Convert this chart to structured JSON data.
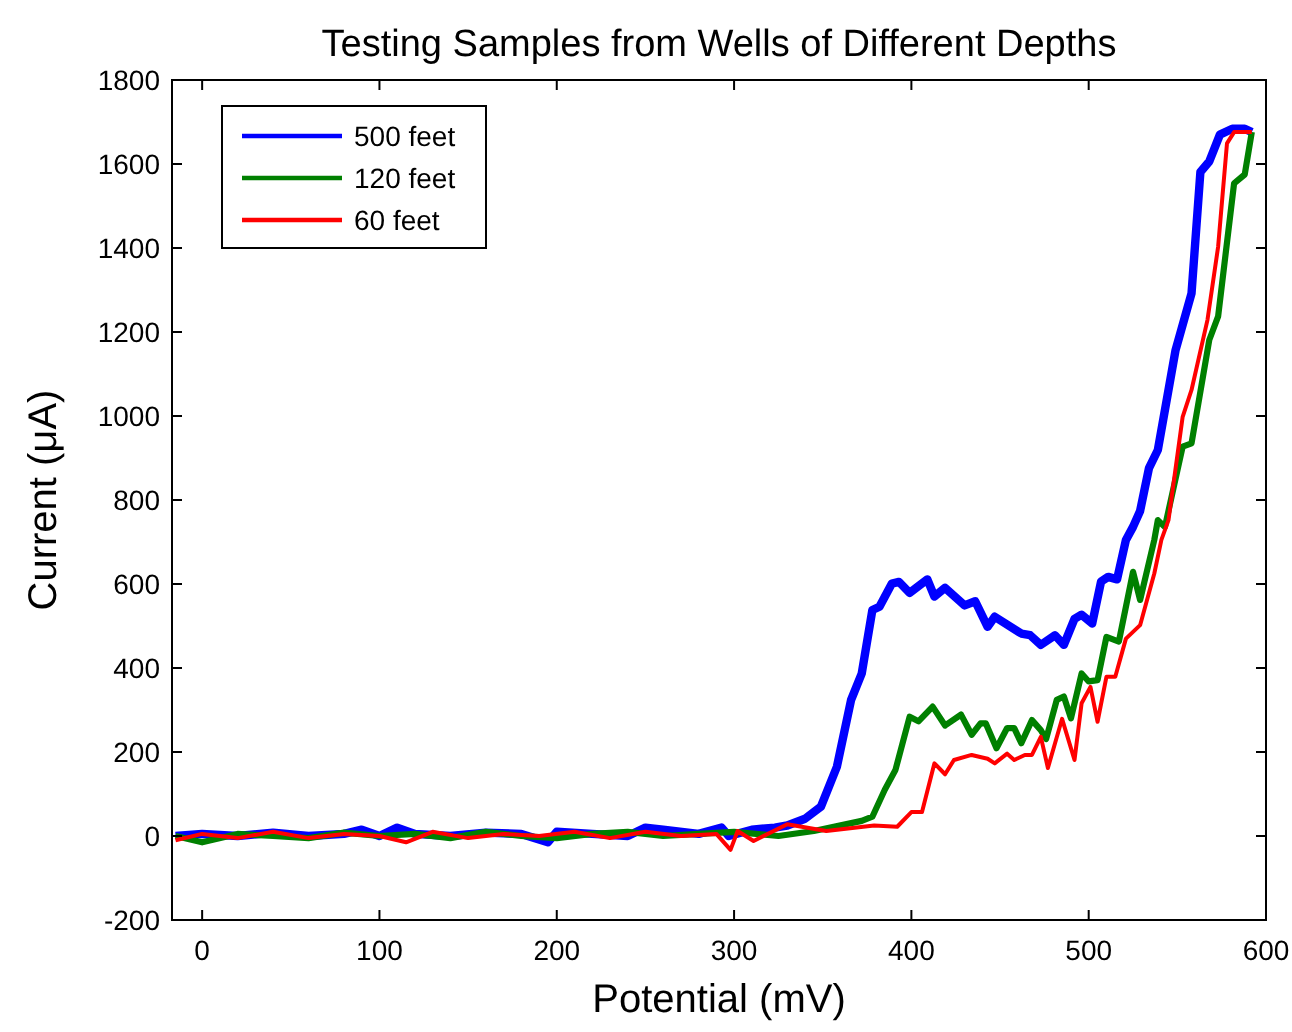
{
  "chart_data": {
    "type": "line",
    "title": "Testing Samples from Wells of Different Depths",
    "xlabel": "Potential (mV)",
    "ylabel": "Current (μA)",
    "xlim": [
      -17,
      600
    ],
    "xticks": [
      0,
      100,
      200,
      300,
      400,
      500,
      600
    ],
    "ylim": [
      -200,
      1800
    ],
    "yticks": [
      -200,
      0,
      200,
      400,
      600,
      800,
      1000,
      1200,
      1400,
      1600,
      1800
    ],
    "grid": false,
    "legend": "top left",
    "line_style": "solid",
    "marker": "none",
    "series": [
      {
        "name": "500 feet",
        "color": "#0000ff",
        "x": [
          -15,
          0,
          20,
          40,
          60,
          80,
          90,
          100,
          110,
          120,
          140,
          160,
          180,
          195,
          200,
          220,
          240,
          250,
          260,
          280,
          293,
          297,
          310,
          323,
          330,
          340,
          349,
          358,
          366,
          372,
          378,
          382,
          389,
          393,
          399,
          409,
          413,
          419,
          430,
          436,
          443,
          447,
          462,
          467,
          473,
          481,
          486,
          492,
          496,
          502,
          507,
          511,
          516,
          521,
          525,
          529,
          534,
          539,
          549,
          558,
          563,
          568,
          574,
          581,
          588,
          592
        ],
        "values": [
          0,
          5,
          0,
          8,
          0,
          5,
          15,
          0,
          20,
          5,
          0,
          8,
          5,
          -15,
          10,
          5,
          0,
          20,
          15,
          5,
          20,
          0,
          15,
          20,
          25,
          41,
          70,
          165,
          324,
          387,
          538,
          546,
          601,
          605,
          579,
          611,
          570,
          591,
          549,
          559,
          498,
          522,
          482,
          478,
          455,
          478,
          455,
          517,
          527,
          506,
          606,
          617,
          611,
          705,
          736,
          774,
          876,
          919,
          1157,
          1292,
          1581,
          1606,
          1670,
          1684,
          1684,
          1676
        ]
      },
      {
        "name": "120 feet",
        "color": "#008000",
        "x": [
          -15,
          0,
          20,
          40,
          60,
          80,
          100,
          120,
          140,
          160,
          180,
          200,
          220,
          240,
          260,
          280,
          300,
          325,
          345,
          372,
          378,
          385,
          391,
          399,
          404,
          412,
          419,
          428,
          434,
          439,
          442,
          448,
          454,
          458,
          462,
          468,
          473,
          476,
          482,
          486,
          490,
          496,
          500,
          505,
          510,
          517,
          525,
          529,
          537,
          539,
          543,
          553,
          558,
          568,
          573,
          582,
          588,
          592
        ],
        "values": [
          0,
          -15,
          5,
          0,
          -5,
          8,
          0,
          5,
          -5,
          10,
          0,
          -5,
          5,
          10,
          0,
          5,
          10,
          0,
          12,
          36,
          46,
          110,
          157,
          284,
          273,
          308,
          263,
          289,
          241,
          268,
          268,
          209,
          257,
          257,
          221,
          276,
          252,
          231,
          324,
          332,
          280,
          387,
          368,
          371,
          474,
          463,
          629,
          562,
          705,
          752,
          736,
          927,
          935,
          1181,
          1237,
          1554,
          1575,
          1676
        ]
      },
      {
        "name": "60 feet",
        "color": "#ff0000",
        "x": [
          -15,
          0,
          20,
          40,
          60,
          80,
          100,
          115,
          130,
          150,
          170,
          190,
          210,
          230,
          250,
          270,
          290,
          298,
          302,
          311,
          330,
          352,
          379,
          392,
          400,
          406,
          413,
          419,
          424,
          434,
          443,
          447,
          454,
          458,
          464,
          468,
          473,
          477,
          485,
          492,
          496,
          501,
          505,
          510,
          515,
          521,
          529,
          537,
          541,
          545,
          553,
          558,
          567,
          573,
          578,
          582,
          592
        ],
        "values": [
          -10,
          5,
          -5,
          10,
          -5,
          5,
          0,
          -15,
          10,
          -5,
          5,
          0,
          10,
          -5,
          10,
          0,
          5,
          -33,
          12,
          -12,
          28,
          12,
          25,
          22,
          57,
          57,
          173,
          147,
          181,
          193,
          184,
          173,
          196,
          181,
          193,
          193,
          236,
          162,
          279,
          181,
          316,
          355,
          272,
          379,
          379,
          470,
          502,
          625,
          705,
          752,
          998,
          1062,
          1229,
          1403,
          1649,
          1676,
          1676
        ]
      }
    ]
  }
}
